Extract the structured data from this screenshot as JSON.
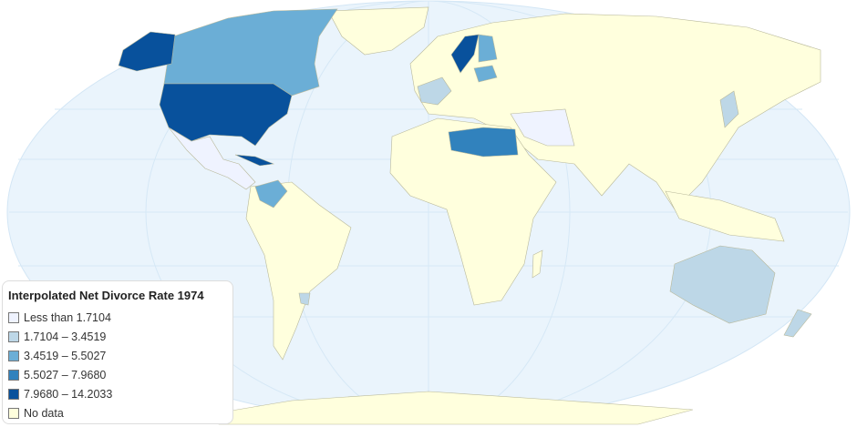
{
  "legend": {
    "title": "Interpolated Net Divorce Rate 1974",
    "items": [
      {
        "label": "Less than 1.7104",
        "color": "#eff3ff"
      },
      {
        "label": "1.7104 – 3.4519",
        "color": "#bdd7e7"
      },
      {
        "label": "3.4519 – 5.5027",
        "color": "#6baed6"
      },
      {
        "label": "5.5027 – 7.9680",
        "color": "#3182bd"
      },
      {
        "label": "7.9680 – 14.2033",
        "color": "#08519c"
      },
      {
        "label": "No data",
        "color": "#ffffdd"
      }
    ]
  },
  "colors": {
    "ocean": "#eaf4fc",
    "border": "#c9c9a8"
  }
}
